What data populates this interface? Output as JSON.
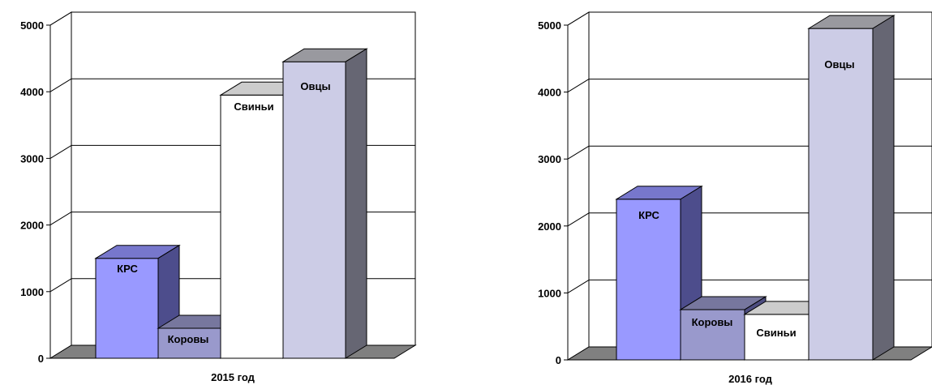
{
  "chart_data": [
    {
      "type": "bar",
      "categories": [
        "КРС",
        "Коровы",
        "Свиньи",
        "Овцы"
      ],
      "values": [
        1500,
        450,
        3950,
        4450
      ],
      "xlabel": "2015 год",
      "ylabel": "",
      "ylim": [
        0,
        5000
      ],
      "yticks": [
        "0",
        "1000",
        "2000",
        "3000",
        "4000",
        "5000"
      ],
      "grid": true,
      "colors": {
        "front": [
          "#9999FF",
          "#9999CC",
          "#FFFFFF",
          "#CCCCE6"
        ],
        "side": [
          "#4D4D8C",
          "#4D4D80",
          "#BFBFBF",
          "#666673"
        ],
        "top": [
          "#7777CC",
          "#77779E",
          "#CCCCCC",
          "#99999F"
        ]
      }
    },
    {
      "type": "bar",
      "categories": [
        "КРС",
        "Коровы",
        "Свиньи",
        "Овцы"
      ],
      "values": [
        2400,
        750,
        680,
        4950
      ],
      "xlabel": "2016 год",
      "ylabel": "",
      "ylim": [
        0,
        5000
      ],
      "yticks": [
        "0",
        "1000",
        "2000",
        "3000",
        "4000",
        "5000"
      ],
      "grid": true,
      "colors": {
        "front": [
          "#9999FF",
          "#9999CC",
          "#FFFFFF",
          "#CCCCE6"
        ],
        "side": [
          "#4D4D8C",
          "#4D4D80",
          "#BFBFBF",
          "#666673"
        ],
        "top": [
          "#7777CC",
          "#77779E",
          "#CCCCCC",
          "#99999F"
        ]
      }
    }
  ]
}
